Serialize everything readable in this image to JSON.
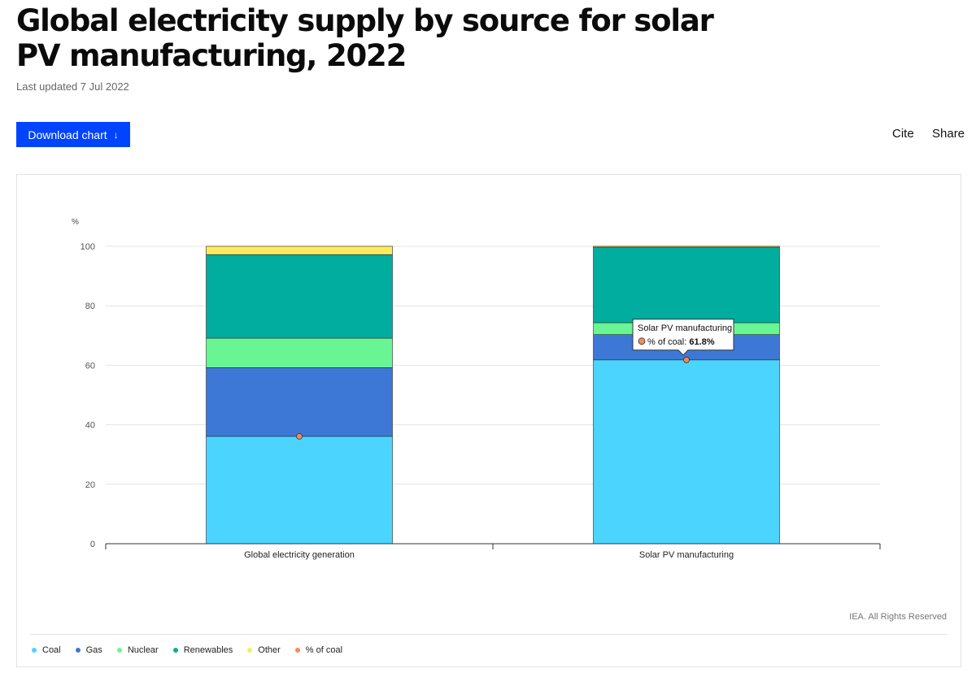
{
  "header": {
    "title": "Global electricity supply by source for solar PV manufacturing, 2022",
    "updated": "Last updated 7 Jul 2022",
    "download_label": "Download chart",
    "download_arrow": "↓",
    "cite_label": "Cite",
    "share_label": "Share"
  },
  "colors": {
    "Coal": "#4bd4fd",
    "Gas": "#3e78d6",
    "Nuclear": "#6af595",
    "Renewables": "#00ad9f",
    "Other": "#fdeb5a",
    "% of coal": "#f58a5e",
    "button": "#0044ff"
  },
  "chart_data": {
    "type": "bar",
    "stacked": true,
    "ylabel": "%",
    "ylim": [
      0,
      100
    ],
    "yticks": [
      0,
      20,
      40,
      60,
      80,
      100
    ],
    "categories": [
      "Global electricity generation",
      "Solar PV manufacturing"
    ],
    "series": [
      {
        "name": "Coal",
        "values": [
          36.1,
          61.8
        ]
      },
      {
        "name": "Gas",
        "values": [
          23.1,
          8.5
        ]
      },
      {
        "name": "Nuclear",
        "values": [
          9.9,
          4.0
        ]
      },
      {
        "name": "Renewables",
        "values": [
          28.1,
          25.4
        ]
      },
      {
        "name": "Other",
        "values": [
          2.8,
          0.3
        ]
      }
    ],
    "markers": {
      "name": "% of coal",
      "values": [
        36.1,
        61.8
      ]
    },
    "tooltip": {
      "title": "Solar PV manufacturing",
      "label": "% of coal:",
      "value": "61.8%"
    },
    "grid": true,
    "legend_position": "bottom-left"
  },
  "footer": {
    "copyright": "IEA. All Rights Reserved",
    "legend": [
      "Coal",
      "Gas",
      "Nuclear",
      "Renewables",
      "Other",
      "% of coal"
    ]
  }
}
